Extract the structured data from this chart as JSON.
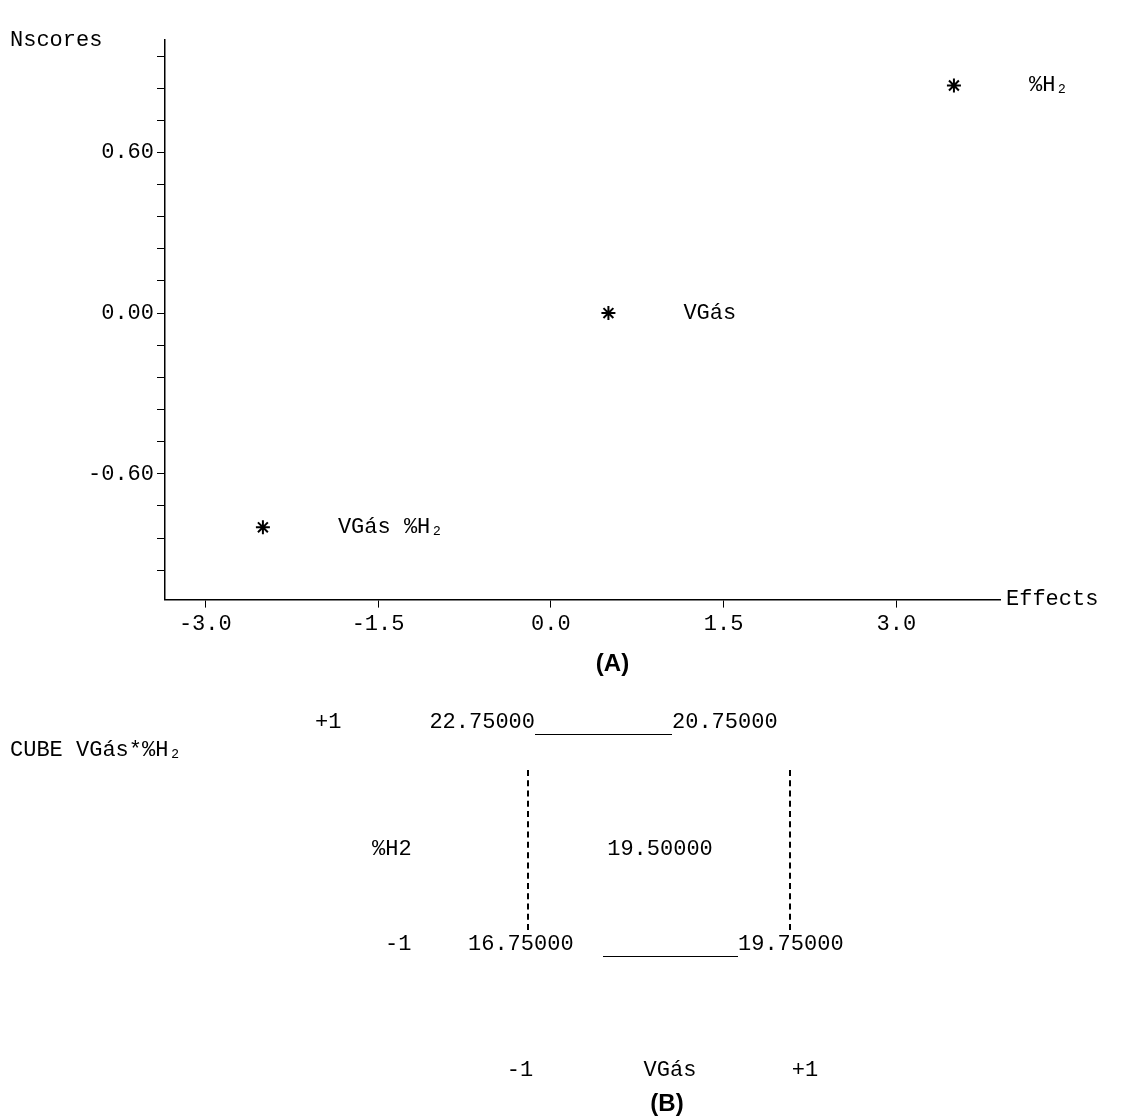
{
  "chart_data": [
    {
      "type": "scatter",
      "xlabel": "Effects",
      "ylabel": "Nscores",
      "marker": "cross",
      "grid": false,
      "series": [
        {
          "name": "%H₂",
          "color": "#000000",
          "x": [
            3.5
          ],
          "values": [
            0.85
          ]
        },
        {
          "name": "VGás",
          "color": "#000000",
          "x": [
            0.5
          ],
          "values": [
            0
          ]
        },
        {
          "name": "VGás %H₂",
          "color": "#000000",
          "x": [
            -2.5
          ],
          "values": [
            -0.8
          ]
        }
      ],
      "xlim": [
        -3.35,
        3.9
      ],
      "ylim": [
        -1.07,
        1.02
      ],
      "xticks": [
        {
          "value": -3,
          "label": "-3.0"
        },
        {
          "value": -1.5,
          "label": "-1.5"
        },
        {
          "value": 0,
          "label": "0.0"
        },
        {
          "value": 1.5,
          "label": "1.5"
        },
        {
          "value": 3,
          "label": "3.0"
        }
      ],
      "yticks": [
        {
          "value": -0.96,
          "label": null
        },
        {
          "value": -0.84,
          "label": null
        },
        {
          "value": -0.72,
          "label": null
        },
        {
          "value": -0.6,
          "label": "-0.60"
        },
        {
          "value": -0.48,
          "label": null
        },
        {
          "value": -0.36,
          "label": null
        },
        {
          "value": -0.24,
          "label": null
        },
        {
          "value": -0.12,
          "label": null
        },
        {
          "value": 0,
          "label": "0.00"
        },
        {
          "value": 0.12,
          "label": null
        },
        {
          "value": 0.24,
          "label": null
        },
        {
          "value": 0.36,
          "label": null
        },
        {
          "value": 0.48,
          "label": null
        },
        {
          "value": 0.6,
          "label": "0.60"
        },
        {
          "value": 0.72,
          "label": null
        },
        {
          "value": 0.84,
          "label": null
        },
        {
          "value": 0.96,
          "label": null
        }
      ],
      "annotations": [
        "(A)"
      ]
    },
    {
      "type": "other",
      "title": "CUBE VGás*%H₂",
      "xlabel": "VGás",
      "ylabel": "%H2",
      "categories": [
        "-1",
        "+1"
      ],
      "y_categories": [
        "+1",
        "-1"
      ],
      "cell_labels": [
        [
          "22.75000",
          "20.75000"
        ],
        [
          "16.75000",
          "19.75000"
        ]
      ],
      "annotations": [
        "19.50000",
        "(B)"
      ]
    }
  ]
}
